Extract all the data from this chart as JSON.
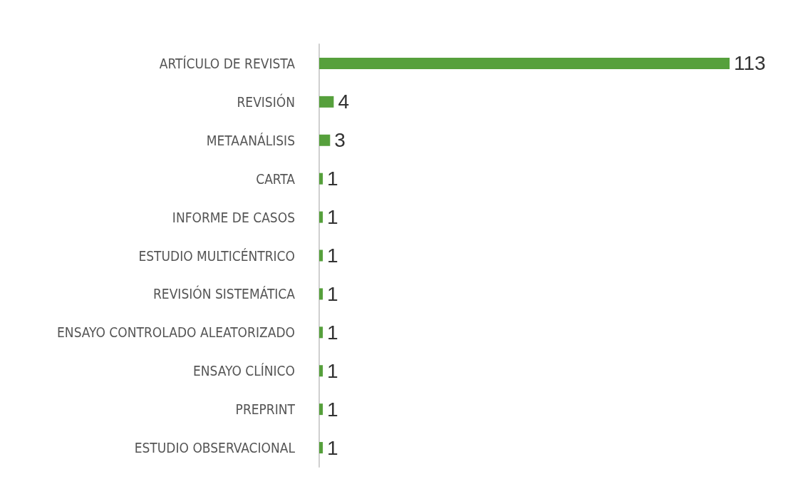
{
  "chart_data": {
    "type": "bar",
    "orientation": "horizontal",
    "categories": [
      "ARTÍCULO DE REVISTA",
      "REVISIÓN",
      "METAANÁLISIS",
      "CARTA",
      "INFORME DE CASOS",
      "ESTUDIO MULTICÉNTRICO",
      "REVISIÓN SISTEMÁTICA",
      "ENSAYO CONTROLADO ALEATORIZADO",
      "ENSAYO CLÍNICO",
      "PREPRINT",
      "ESTUDIO OBSERVACIONAL"
    ],
    "values": [
      113,
      4,
      3,
      1,
      1,
      1,
      1,
      1,
      1,
      1,
      1
    ],
    "color": "#56a03c",
    "data_labels": true
  }
}
